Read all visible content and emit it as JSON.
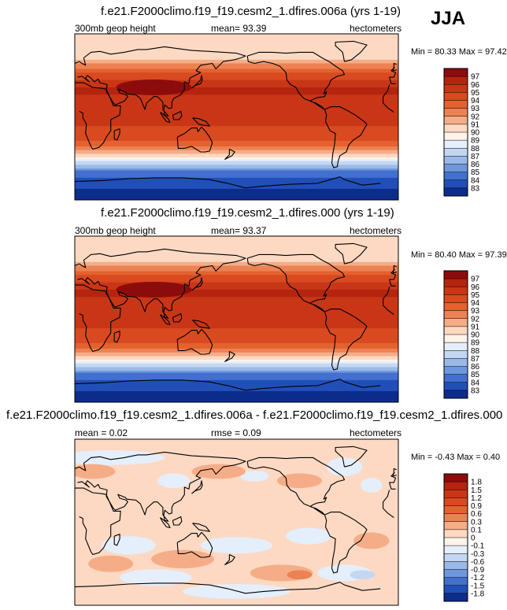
{
  "season": "JJA",
  "panels": [
    {
      "title": "f.e21.F2000climo.f19_f19.cesm2_1.dfires.006a (yrs 1-19)",
      "left_label": "300mb geop height",
      "center_label": "mean=  93.39",
      "right_label": "hectometers",
      "minmax": "Min =  80.33 Max =  97.42"
    },
    {
      "title": "f.e21.F2000climo.f19_f19.cesm2_1.dfires.000 (yrs 1-19)",
      "left_label": "300mb geop height",
      "center_label": "mean=  93.37",
      "right_label": "hectometers",
      "minmax": "Min =  80.40 Max =  97.39"
    },
    {
      "title": "f.e21.F2000climo.f19_f19.cesm2_1.dfires.006a - f.e21.F2000climo.f19_f19.cesm2_1.dfires.000",
      "left_label": "mean =  0.02",
      "center_label": "rmse =  0.09",
      "right_label": "hectometers",
      "minmax": "Min = -0.43 Max =  0.40"
    }
  ],
  "chart_data": [
    {
      "type": "heatmap",
      "field": "300mb geopotential height (global map, filled contours)",
      "units": "hectometers",
      "mean": 93.39,
      "min": 80.33,
      "max": 97.42,
      "colorbar_levels": [
        97,
        96,
        95,
        94,
        93,
        92,
        91,
        90,
        89,
        88,
        87,
        86,
        85,
        84,
        83
      ],
      "colorbar_colors": [
        "#8c0c0c",
        "#b4240f",
        "#c93616",
        "#d94a20",
        "#e3622f",
        "#ec8253",
        "#f5ad88",
        "#fdd9c3",
        "#fff3ea",
        "#e5eefb",
        "#c4d7f2",
        "#9bb9e8",
        "#6f97de",
        "#4370d0",
        "#214fb8",
        "#0d2c8c"
      ],
      "lat_profile": [
        {
          "lat": 90,
          "value": 90
        },
        {
          "lat": 65,
          "value": 90.5
        },
        {
          "lat": 55,
          "value": 92.5
        },
        {
          "lat": 45,
          "value": 94.5
        },
        {
          "lat": 30,
          "value": 96.2
        },
        {
          "lat": 10,
          "value": 95.6
        },
        {
          "lat": -10,
          "value": 95.0
        },
        {
          "lat": -25,
          "value": 94.0
        },
        {
          "lat": -35,
          "value": 92.5
        },
        {
          "lat": -42,
          "value": 90.5
        },
        {
          "lat": -50,
          "value": 87.5
        },
        {
          "lat": -60,
          "value": 84.5
        },
        {
          "lat": -90,
          "value": 82
        }
      ]
    },
    {
      "type": "heatmap",
      "field": "300mb geopotential height (global map, filled contours)",
      "units": "hectometers",
      "mean": 93.37,
      "min": 80.4,
      "max": 97.39,
      "colorbar_levels": [
        97,
        96,
        95,
        94,
        93,
        92,
        91,
        90,
        89,
        88,
        87,
        86,
        85,
        84,
        83
      ],
      "colorbar_colors": [
        "#8c0c0c",
        "#b4240f",
        "#c93616",
        "#d94a20",
        "#e3622f",
        "#ec8253",
        "#f5ad88",
        "#fdd9c3",
        "#fff3ea",
        "#e5eefb",
        "#c4d7f2",
        "#9bb9e8",
        "#6f97de",
        "#4370d0",
        "#214fb8",
        "#0d2c8c"
      ],
      "lat_profile": [
        {
          "lat": 90,
          "value": 90
        },
        {
          "lat": 65,
          "value": 90.5
        },
        {
          "lat": 55,
          "value": 92.5
        },
        {
          "lat": 45,
          "value": 94.5
        },
        {
          "lat": 30,
          "value": 96.2
        },
        {
          "lat": 10,
          "value": 95.6
        },
        {
          "lat": -10,
          "value": 95.0
        },
        {
          "lat": -25,
          "value": 94.0
        },
        {
          "lat": -35,
          "value": 92.5
        },
        {
          "lat": -42,
          "value": 90.5
        },
        {
          "lat": -50,
          "value": 87.5
        },
        {
          "lat": -60,
          "value": 84.5
        },
        {
          "lat": -90,
          "value": 82
        }
      ]
    },
    {
      "type": "heatmap",
      "field": "difference 006a - 000 (global map, filled contours)",
      "units": "hectometers",
      "mean": 0.02,
      "rmse": 0.09,
      "min": -0.43,
      "max": 0.4,
      "colorbar_levels": [
        1.8,
        1.5,
        1.2,
        0.9,
        0.6,
        0.3,
        0.1,
        0,
        -0.1,
        -0.3,
        -0.6,
        -0.9,
        -1.2,
        -1.5,
        -1.8
      ],
      "colorbar_colors": [
        "#8c0c0c",
        "#b4240f",
        "#c93616",
        "#d94a20",
        "#e3622f",
        "#ec8253",
        "#f5ad88",
        "#fdd9c3",
        "#fff3ea",
        "#e5eefb",
        "#c4d7f2",
        "#9bb9e8",
        "#6f97de",
        "#4370d0",
        "#214fb8",
        "#0d2c8c"
      ]
    }
  ]
}
